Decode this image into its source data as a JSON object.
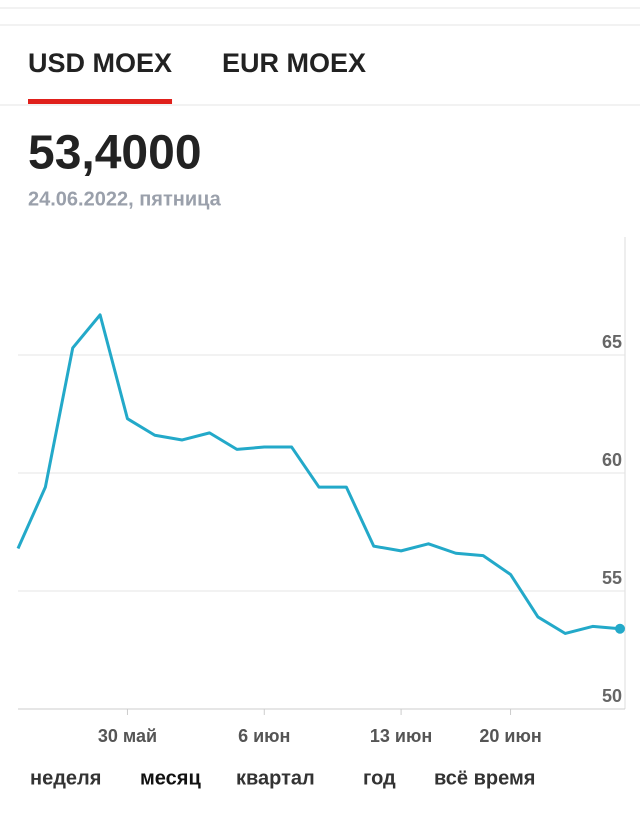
{
  "tabs": [
    "USD MOEX",
    "EUR MOEX"
  ],
  "active_tab": 0,
  "price": "53,4000",
  "date": "24.06.2022, пятница",
  "chart_data": {
    "type": "line",
    "categories": [
      null,
      null,
      null,
      null,
      "30 май",
      null,
      null,
      null,
      null,
      "6 июн",
      null,
      null,
      null,
      null,
      "13 июн",
      null,
      null,
      null,
      "20 июн",
      null,
      null,
      null,
      null
    ],
    "series": [
      {
        "color": "#23a9c9",
        "values": [
          56.8,
          59.4,
          65.3,
          66.7,
          62.3,
          61.6,
          61.4,
          61.7,
          61.0,
          61.1,
          61.1,
          59.4,
          59.4,
          56.9,
          56.7,
          57.0,
          56.6,
          56.5,
          55.7,
          53.9,
          53.2,
          53.5,
          53.4
        ]
      }
    ],
    "ylim": [
      50,
      70
    ],
    "yticks": [
      50,
      55,
      60,
      65
    ],
    "grid": true
  },
  "periods": [
    "неделя",
    "месяц",
    "квартал",
    "год",
    "всё время"
  ],
  "active_period": 1
}
